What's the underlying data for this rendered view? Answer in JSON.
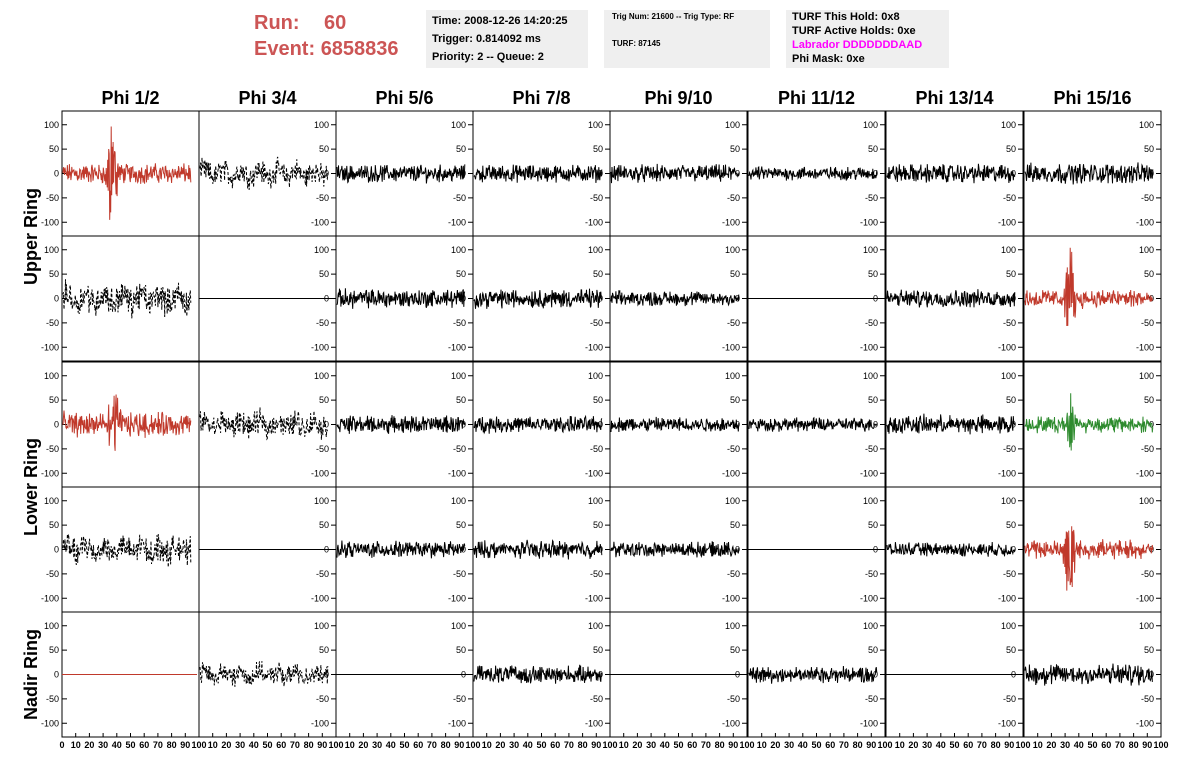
{
  "header": {
    "run_label": "Run:",
    "run_value": "60",
    "event_label": "Event:",
    "event_value": "6858836"
  },
  "info_box_1": {
    "time": "Time: 2008-12-26 14:20:25",
    "trigger": "Trigger: 0.814092 ms",
    "priority": "Priority: 2 -- Queue: 2"
  },
  "info_box_2": {
    "trig": "Trig Num: 21600 -- Trig Type: RF",
    "turf": "TURF: 87145"
  },
  "info_box_3": {
    "this_hold": "TURF This Hold: 0x8",
    "active_holds": "TURF Active Holds: 0xe",
    "labrador": "Labrador DDDDDDDAAD",
    "phi_mask": "Phi Mask: 0xe"
  },
  "colors": {
    "red": "#c0392b",
    "black": "#000000",
    "green": "#2e8b2e",
    "run": "#cc5555",
    "labrador": "#ff00ff"
  },
  "chart_data": {
    "type": "line",
    "columns": [
      "Phi 1/2",
      "Phi 3/4",
      "Phi 5/6",
      "Phi 7/8",
      "Phi 9/10",
      "Phi 11/12",
      "Phi 13/14",
      "Phi 15/16"
    ],
    "ring_labels": [
      "Upper Ring",
      "Lower Ring",
      "Nadir Ring"
    ],
    "ylim": [
      -120,
      120
    ],
    "y_ticks": [
      -100,
      -50,
      0,
      50,
      100
    ],
    "xlim": [
      0,
      100
    ],
    "x_ticks": [
      0,
      10,
      20,
      30,
      40,
      50,
      60,
      70,
      80,
      90,
      100
    ],
    "rows": [
      [
        {
          "style": "red",
          "amp": 15,
          "spike": [
            38,
            85
          ]
        },
        {
          "style": "dashed",
          "amp": 18
        },
        {
          "style": "solid",
          "amp": 13
        },
        {
          "style": "solid",
          "amp": 13
        },
        {
          "style": "solid",
          "amp": 13
        },
        {
          "style": "solid",
          "amp": 10
        },
        {
          "style": "solid",
          "amp": 14
        },
        {
          "style": "solid",
          "amp": 15
        }
      ],
      [
        {
          "style": "dashed",
          "amp": 22
        },
        {
          "style": "flat",
          "amp": 0
        },
        {
          "style": "solid",
          "amp": 14
        },
        {
          "style": "solid",
          "amp": 14
        },
        {
          "style": "solid",
          "amp": 11
        },
        {
          "style": "flat",
          "amp": 0
        },
        {
          "style": "solid",
          "amp": 13
        },
        {
          "style": "red",
          "amp": 14,
          "spike": [
            35,
            95
          ]
        }
      ],
      [
        {
          "style": "red",
          "amp": 18,
          "spike": [
            40,
            60
          ]
        },
        {
          "style": "dashed",
          "amp": 18
        },
        {
          "style": "solid",
          "amp": 13
        },
        {
          "style": "solid",
          "amp": 12
        },
        {
          "style": "solid",
          "amp": 11
        },
        {
          "style": "solid",
          "amp": 10
        },
        {
          "style": "solid",
          "amp": 14
        },
        {
          "style": "green",
          "amp": 12,
          "spike": [
            35,
            40
          ]
        }
      ],
      [
        {
          "style": "dashed",
          "amp": 20
        },
        {
          "style": "flat",
          "amp": 0
        },
        {
          "style": "solid",
          "amp": 12
        },
        {
          "style": "solid",
          "amp": 13
        },
        {
          "style": "solid",
          "amp": 11
        },
        {
          "style": "flat",
          "amp": 0
        },
        {
          "style": "solid",
          "amp": 10
        },
        {
          "style": "red",
          "amp": 14,
          "spike": [
            35,
            90
          ]
        }
      ],
      [
        {
          "style": "redflat",
          "amp": 0
        },
        {
          "style": "dashed",
          "amp": 15
        },
        {
          "style": "flat",
          "amp": 0
        },
        {
          "style": "solid",
          "amp": 13
        },
        {
          "style": "flat",
          "amp": 0
        },
        {
          "style": "solid",
          "amp": 12
        },
        {
          "style": "flat",
          "amp": 0
        },
        {
          "style": "solid",
          "amp": 16
        }
      ]
    ]
  }
}
